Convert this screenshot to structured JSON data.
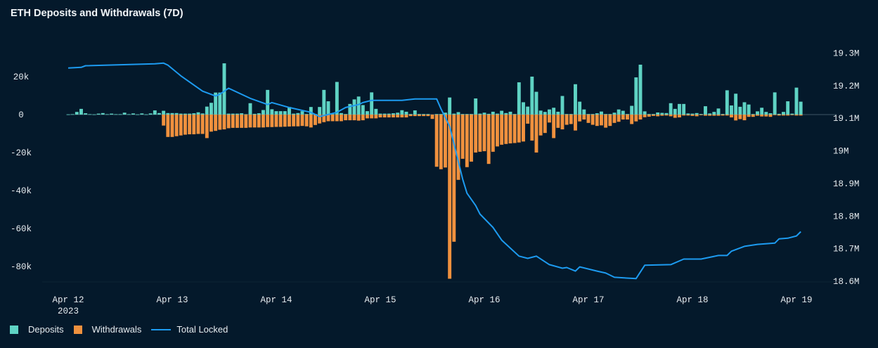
{
  "chart_data": {
    "type": "bar+line",
    "title": "ETH Deposits and Withdrawals (7D)",
    "x_ticks": [
      {
        "label": "Apr 12",
        "date": "2023-04-12",
        "sub": "2023"
      },
      {
        "label": "Apr 13",
        "date": "2023-04-13"
      },
      {
        "label": "Apr 14",
        "date": "2023-04-14"
      },
      {
        "label": "Apr 15",
        "date": "2023-04-15"
      },
      {
        "label": "Apr 16",
        "date": "2023-04-16"
      },
      {
        "label": "Apr 17",
        "date": "2023-04-17"
      },
      {
        "label": "Apr 18",
        "date": "2023-04-18"
      },
      {
        "label": "Apr 19",
        "date": "2023-04-19"
      }
    ],
    "y_ticks": [
      {
        "value": 20000,
        "label": "20k"
      },
      {
        "value": 0,
        "label": "0"
      },
      {
        "value": -20000,
        "label": "-20k"
      },
      {
        "value": -40000,
        "label": "-40k"
      },
      {
        "value": -60000,
        "label": "-60k"
      },
      {
        "value": -80000,
        "label": "-80k"
      }
    ],
    "y2_ticks": [
      {
        "value": 19300000,
        "label": "19.3M"
      },
      {
        "value": 19200000,
        "label": "19.2M"
      },
      {
        "value": 19100000,
        "label": "19.1M"
      },
      {
        "value": 19000000,
        "label": "19M"
      },
      {
        "value": 18900000,
        "label": "18.9M"
      },
      {
        "value": 18800000,
        "label": "18.8M"
      },
      {
        "value": 18700000,
        "label": "18.7M"
      },
      {
        "value": 18600000,
        "label": "18.6M"
      }
    ],
    "ylim": [
      -87800,
      37400
    ],
    "y2lim": [
      18600000,
      19329000
    ],
    "grid": false,
    "legend_position": "bottom-left",
    "series": [
      {
        "name": "Deposits",
        "type": "bar",
        "axis": "left",
        "color": "#5fd3c4"
      },
      {
        "name": "Withdrawals",
        "type": "bar",
        "axis": "left",
        "color": "#f0913e"
      },
      {
        "name": "Total Locked",
        "type": "line",
        "axis": "right",
        "color": "#1d9bf0"
      }
    ],
    "bar_interval": "1h",
    "hourly": [
      {
        "date": "2023-04-12",
        "deposits": [
          100,
          200,
          1400,
          3000,
          700,
          200,
          100,
          500,
          800,
          200,
          500,
          200,
          200,
          1000,
          200,
          600,
          100,
          600,
          100,
          600,
          2200,
          800,
          2000,
          800
        ],
        "withdrawals": [
          0,
          0,
          0,
          0,
          0,
          0,
          0,
          0,
          0,
          0,
          0,
          0,
          0,
          0,
          0,
          0,
          0,
          0,
          0,
          0,
          0,
          0,
          -5800,
          -11800
        ]
      },
      {
        "date": "2023-04-13",
        "deposits": [
          800,
          800,
          500,
          500,
          500,
          700,
          1200,
          600,
          4200,
          6200,
          11600,
          11600,
          27000,
          500,
          500,
          500,
          700,
          200,
          6000,
          400,
          700,
          2400,
          13000,
          2800
        ],
        "withdrawals": [
          -11800,
          -11400,
          -11000,
          -10600,
          -10400,
          -10400,
          -10200,
          -10200,
          -12400,
          -9000,
          -8600,
          -8000,
          -7800,
          -7200,
          -7000,
          -7000,
          -7000,
          -7000,
          -6800,
          -6800,
          -6800,
          -6800,
          -6600,
          -6600
        ]
      },
      {
        "date": "2023-04-14",
        "deposits": [
          1800,
          1800,
          1800,
          4000,
          500,
          800,
          1800,
          300,
          4000,
          300,
          4000,
          13000,
          7000,
          300,
          17200,
          800,
          300,
          5600,
          8000,
          9500,
          5000,
          1800,
          11700,
          3000
        ],
        "withdrawals": [
          -6500,
          -6500,
          -6400,
          -6300,
          -6200,
          -6200,
          -6000,
          -6200,
          -6800,
          -5500,
          -4700,
          -4000,
          -3500,
          -3500,
          -3500,
          -3500,
          -3000,
          -3000,
          -3000,
          -3200,
          -3000,
          -2000,
          -2000,
          -2000
        ]
      },
      {
        "date": "2023-04-15",
        "deposits": [
          500,
          500,
          500,
          700,
          1000,
          2300,
          1500,
          300,
          2200,
          300,
          300,
          300,
          0,
          300,
          300,
          1000,
          9000,
          500,
          1300,
          300,
          300,
          300,
          8500,
          500
        ],
        "withdrawals": [
          -1500,
          -1500,
          -1500,
          -1500,
          -1500,
          -1500,
          -1500,
          -800,
          -800,
          -800,
          -800,
          -800,
          -2300,
          -27500,
          -28800,
          -27900,
          -86500,
          -67000,
          -34400,
          -23300,
          -27700,
          -24800,
          -20000,
          -19600
        ]
      },
      {
        "date": "2023-04-16",
        "deposits": [
          1000,
          400,
          1500,
          500,
          2000,
          800,
          1500,
          300,
          17000,
          6500,
          4200,
          20000,
          12000,
          2100,
          1400,
          2700,
          3600,
          1500,
          9800,
          300,
          300,
          16000,
          6800,
          2700
        ],
        "withdrawals": [
          -19300,
          -26000,
          -19600,
          -16800,
          -15900,
          -15500,
          -15200,
          -15000,
          -14700,
          -14200,
          -4800,
          -13700,
          -20000,
          -11000,
          -9700,
          -4200,
          -12400,
          -7000,
          -7800,
          -5400,
          -5000,
          -8400,
          -3600,
          -2600
        ]
      },
      {
        "date": "2023-04-17",
        "deposits": [
          300,
          300,
          700,
          1600,
          300,
          300,
          1000,
          2700,
          2000,
          300,
          4600,
          19600,
          26300,
          1700,
          300,
          300,
          1100,
          900,
          800,
          6000,
          3000,
          5600,
          5600,
          600
        ],
        "withdrawals": [
          -4400,
          -5400,
          -6000,
          -5700,
          -6900,
          -6000,
          -4400,
          -3800,
          -2600,
          -2600,
          -5000,
          -3600,
          -2600,
          -1400,
          -1100,
          -700,
          -900,
          -600,
          -500,
          -900,
          -1700,
          -1500,
          -500,
          -500
        ]
      },
      {
        "date": "2023-04-18",
        "deposits": [
          500,
          800,
          300,
          4400,
          600,
          1400,
          3200,
          300,
          12800,
          4800,
          11000,
          4100,
          6500,
          5300,
          300,
          1700,
          3600,
          1400,
          700,
          11700,
          400,
          1400,
          7000,
          500
        ],
        "withdrawals": [
          -700,
          -900,
          -300,
          -600,
          -600,
          -600,
          -600,
          -500,
          -500,
          -1500,
          -3100,
          -2400,
          -3000,
          -1200,
          -1200,
          -600,
          -1000,
          -1000,
          -1200,
          -300,
          -500,
          -500,
          -500,
          -300
        ]
      },
      {
        "date": "2023-04-19",
        "deposits": [
          14200,
          6800
        ],
        "withdrawals": [
          -500,
          -500
        ]
      }
    ],
    "total_locked": [
      {
        "t": "2023-04-12T00:00",
        "v": 19254000
      },
      {
        "t": "2023-04-12T03:00",
        "v": 19256000
      },
      {
        "t": "2023-04-12T04:00",
        "v": 19261000
      },
      {
        "t": "2023-04-12T20:00",
        "v": 19267000
      },
      {
        "t": "2023-04-12T22:00",
        "v": 19269000
      },
      {
        "t": "2023-04-12T23:00",
        "v": 19263000
      },
      {
        "t": "2023-04-13T02:00",
        "v": 19230000
      },
      {
        "t": "2023-04-13T07:00",
        "v": 19183000
      },
      {
        "t": "2023-04-13T10:00",
        "v": 19168000
      },
      {
        "t": "2023-04-13T11:00",
        "v": 19174000
      },
      {
        "t": "2023-04-13T13:00",
        "v": 19192000
      },
      {
        "t": "2023-04-13T18:00",
        "v": 19161000
      },
      {
        "t": "2023-04-13T22:00",
        "v": 19142000
      },
      {
        "t": "2023-04-13T23:00",
        "v": 19148000
      },
      {
        "t": "2023-04-14T03:00",
        "v": 19133000
      },
      {
        "t": "2023-04-14T08:00",
        "v": 19118000
      },
      {
        "t": "2023-04-14T10:00",
        "v": 19105000
      },
      {
        "t": "2023-04-14T14:00",
        "v": 19118000
      },
      {
        "t": "2023-04-14T16:00",
        "v": 19133000
      },
      {
        "t": "2023-04-14T19:00",
        "v": 19142000
      },
      {
        "t": "2023-04-14T20:00",
        "v": 19148000
      },
      {
        "t": "2023-04-14T22:00",
        "v": 19155000
      },
      {
        "t": "2023-04-15T05:00",
        "v": 19155000
      },
      {
        "t": "2023-04-15T08:00",
        "v": 19159000
      },
      {
        "t": "2023-04-15T13:00",
        "v": 19159000
      },
      {
        "t": "2023-04-15T14:00",
        "v": 19129000
      },
      {
        "t": "2023-04-15T16:00",
        "v": 19075000
      },
      {
        "t": "2023-04-15T18:00",
        "v": 18967000
      },
      {
        "t": "2023-04-15T19:00",
        "v": 18913000
      },
      {
        "t": "2023-04-15T20:00",
        "v": 18870000
      },
      {
        "t": "2023-04-15T22:00",
        "v": 18832000
      },
      {
        "t": "2023-04-15T23:00",
        "v": 18806000
      },
      {
        "t": "2023-04-16T02:00",
        "v": 18765000
      },
      {
        "t": "2023-04-16T04:00",
        "v": 18726000
      },
      {
        "t": "2023-04-16T08:00",
        "v": 18677000
      },
      {
        "t": "2023-04-16T10:00",
        "v": 18670000
      },
      {
        "t": "2023-04-16T12:00",
        "v": 18677000
      },
      {
        "t": "2023-04-16T15:00",
        "v": 18651000
      },
      {
        "t": "2023-04-16T18:00",
        "v": 18640000
      },
      {
        "t": "2023-04-16T19:00",
        "v": 18642000
      },
      {
        "t": "2023-04-16T21:00",
        "v": 18631000
      },
      {
        "t": "2023-04-16T22:00",
        "v": 18644000
      },
      {
        "t": "2023-04-17T02:00",
        "v": 18631000
      },
      {
        "t": "2023-04-17T04:00",
        "v": 18625000
      },
      {
        "t": "2023-04-17T06:00",
        "v": 18612000
      },
      {
        "t": "2023-04-17T11:00",
        "v": 18608000
      },
      {
        "t": "2023-04-17T13:00",
        "v": 18649000
      },
      {
        "t": "2023-04-17T19:00",
        "v": 18651000
      },
      {
        "t": "2023-04-17T22:00",
        "v": 18668000
      },
      {
        "t": "2023-04-18T02:00",
        "v": 18668000
      },
      {
        "t": "2023-04-18T06:00",
        "v": 18679000
      },
      {
        "t": "2023-04-18T08:00",
        "v": 18679000
      },
      {
        "t": "2023-04-18T09:00",
        "v": 18692000
      },
      {
        "t": "2023-04-18T12:00",
        "v": 18707000
      },
      {
        "t": "2023-04-18T15:00",
        "v": 18713000
      },
      {
        "t": "2023-04-18T19:00",
        "v": 18717000
      },
      {
        "t": "2023-04-18T20:00",
        "v": 18730000
      },
      {
        "t": "2023-04-18T22:00",
        "v": 18732000
      },
      {
        "t": "2023-04-19T00:00",
        "v": 18739000
      },
      {
        "t": "2023-04-19T01:00",
        "v": 18752000
      }
    ]
  },
  "legend": {
    "items": [
      {
        "label": "Deposits",
        "color": "#5fd3c4"
      },
      {
        "label": "Withdrawals",
        "color": "#f0913e"
      },
      {
        "label": "Total Locked",
        "color": "#1d9bf0"
      }
    ]
  }
}
